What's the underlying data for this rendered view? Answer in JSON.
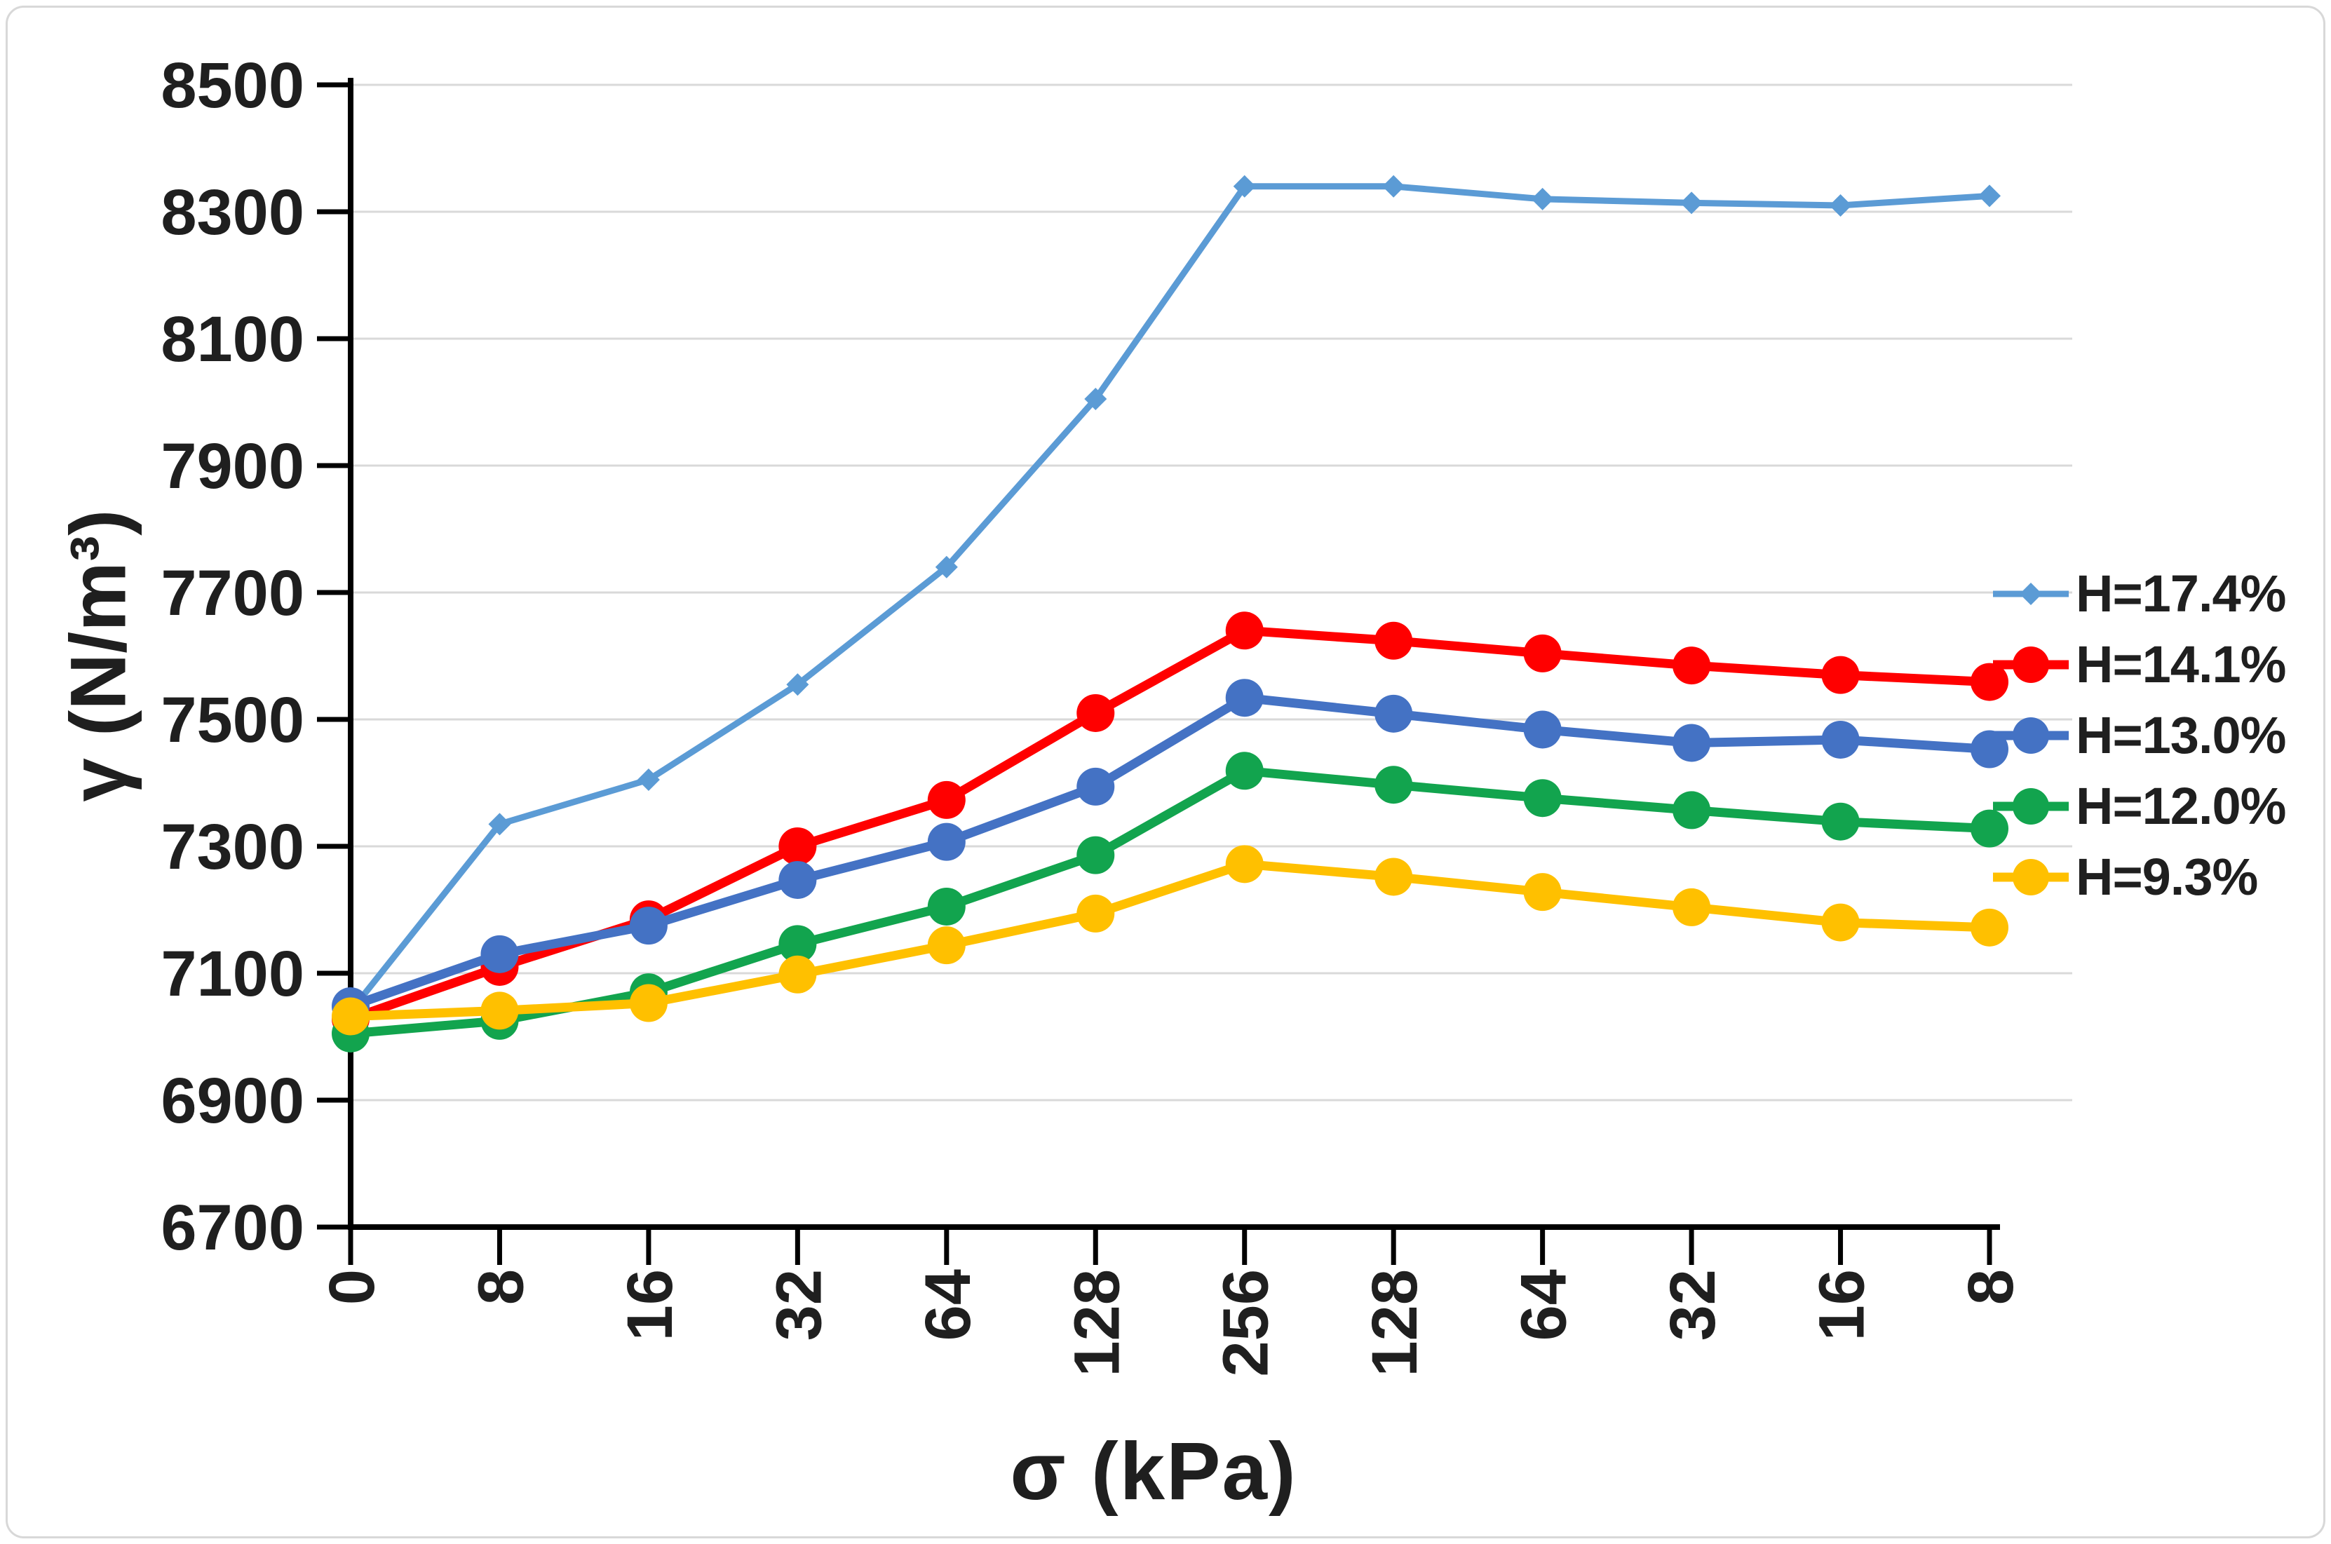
{
  "figure": {
    "background": "#ffffff",
    "border_color": "#d8d8d8"
  },
  "chart_data": {
    "type": "line",
    "title": "",
    "xlabel": "σ (kPa)",
    "ylabel": "γ (N/m³)",
    "ylim": [
      6700,
      8500
    ],
    "y_step": 200,
    "y_tick_labels": [
      "8500",
      "8300",
      "8100",
      "7900",
      "7700",
      "7500",
      "7300",
      "7100",
      "6900",
      "6700"
    ],
    "categories": [
      "0",
      "8",
      "16",
      "32",
      "64",
      "128",
      "256",
      "128",
      "64",
      "32",
      "16",
      "8"
    ],
    "grid": "horizontal-only",
    "gridline_color": "#d9d9d9",
    "axis_color": "#000000",
    "text_color": "#1f1f1f",
    "legend_position": "right",
    "series": [
      {
        "name": "H=17.4%",
        "color": "#5B9BD5",
        "marker": "diamond",
        "marker_size": 16,
        "line_width": 9,
        "values": [
          7040,
          7335,
          7405,
          7555,
          7740,
          8005,
          8340,
          8340,
          8320,
          8314,
          8310,
          8325
        ]
      },
      {
        "name": "H=14.1%",
        "color": "#FF0000",
        "marker": "circle",
        "marker_size": 27,
        "line_width": 13,
        "values": [
          7028,
          7110,
          7185,
          7300,
          7373,
          7510,
          7640,
          7624,
          7604,
          7585,
          7570,
          7559
        ]
      },
      {
        "name": "H=13.0%",
        "color": "#4472C4",
        "marker": "circle",
        "marker_size": 27,
        "line_width": 13,
        "values": [
          7048,
          7130,
          7175,
          7247,
          7307,
          7394,
          7534,
          7509,
          7484,
          7463,
          7468,
          7453
        ]
      },
      {
        "name": "H=12.0%",
        "color": "#12A44E",
        "marker": "circle",
        "marker_size": 27,
        "line_width": 13,
        "values": [
          7005,
          7025,
          7070,
          7146,
          7205,
          7286,
          7419,
          7397,
          7376,
          7357,
          7339,
          7328
        ]
      },
      {
        "name": "H=9.3%",
        "color": "#FFC000",
        "marker": "circle",
        "marker_size": 27,
        "line_width": 13,
        "values": [
          7032,
          7041,
          7053,
          7098,
          7144,
          7194,
          7272,
          7252,
          7228,
          7204,
          7180,
          7172
        ]
      }
    ]
  }
}
